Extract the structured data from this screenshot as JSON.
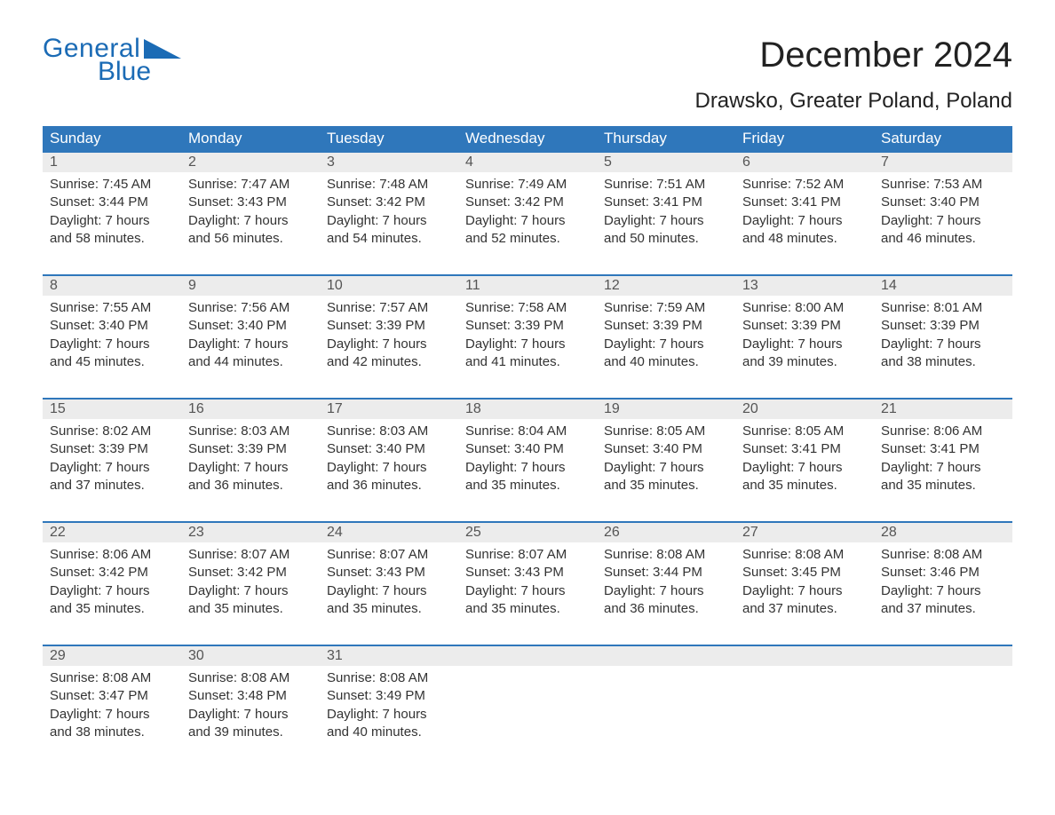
{
  "brand": {
    "word1": "General",
    "word2": "Blue",
    "brand_color": "#1b6bb5"
  },
  "title": "December 2024",
  "location": "Drawsko, Greater Poland, Poland",
  "colors": {
    "header_bg": "#2f77bb",
    "header_text": "#ffffff",
    "daynum_bg": "#ececec",
    "daynum_border_top": "#2f77bb",
    "body_text": "#333333",
    "page_bg": "#ffffff"
  },
  "typography": {
    "title_fontsize": 40,
    "subtitle_fontsize": 24,
    "header_fontsize": 17,
    "daynum_fontsize": 16,
    "body_fontsize": 15
  },
  "calendar": {
    "type": "table",
    "columns": [
      "Sunday",
      "Monday",
      "Tuesday",
      "Wednesday",
      "Thursday",
      "Friday",
      "Saturday"
    ],
    "weeks": [
      [
        {
          "n": "1",
          "sr": "Sunrise: 7:45 AM",
          "ss": "Sunset: 3:44 PM",
          "d1": "Daylight: 7 hours",
          "d2": "and 58 minutes."
        },
        {
          "n": "2",
          "sr": "Sunrise: 7:47 AM",
          "ss": "Sunset: 3:43 PM",
          "d1": "Daylight: 7 hours",
          "d2": "and 56 minutes."
        },
        {
          "n": "3",
          "sr": "Sunrise: 7:48 AM",
          "ss": "Sunset: 3:42 PM",
          "d1": "Daylight: 7 hours",
          "d2": "and 54 minutes."
        },
        {
          "n": "4",
          "sr": "Sunrise: 7:49 AM",
          "ss": "Sunset: 3:42 PM",
          "d1": "Daylight: 7 hours",
          "d2": "and 52 minutes."
        },
        {
          "n": "5",
          "sr": "Sunrise: 7:51 AM",
          "ss": "Sunset: 3:41 PM",
          "d1": "Daylight: 7 hours",
          "d2": "and 50 minutes."
        },
        {
          "n": "6",
          "sr": "Sunrise: 7:52 AM",
          "ss": "Sunset: 3:41 PM",
          "d1": "Daylight: 7 hours",
          "d2": "and 48 minutes."
        },
        {
          "n": "7",
          "sr": "Sunrise: 7:53 AM",
          "ss": "Sunset: 3:40 PM",
          "d1": "Daylight: 7 hours",
          "d2": "and 46 minutes."
        }
      ],
      [
        {
          "n": "8",
          "sr": "Sunrise: 7:55 AM",
          "ss": "Sunset: 3:40 PM",
          "d1": "Daylight: 7 hours",
          "d2": "and 45 minutes."
        },
        {
          "n": "9",
          "sr": "Sunrise: 7:56 AM",
          "ss": "Sunset: 3:40 PM",
          "d1": "Daylight: 7 hours",
          "d2": "and 44 minutes."
        },
        {
          "n": "10",
          "sr": "Sunrise: 7:57 AM",
          "ss": "Sunset: 3:39 PM",
          "d1": "Daylight: 7 hours",
          "d2": "and 42 minutes."
        },
        {
          "n": "11",
          "sr": "Sunrise: 7:58 AM",
          "ss": "Sunset: 3:39 PM",
          "d1": "Daylight: 7 hours",
          "d2": "and 41 minutes."
        },
        {
          "n": "12",
          "sr": "Sunrise: 7:59 AM",
          "ss": "Sunset: 3:39 PM",
          "d1": "Daylight: 7 hours",
          "d2": "and 40 minutes."
        },
        {
          "n": "13",
          "sr": "Sunrise: 8:00 AM",
          "ss": "Sunset: 3:39 PM",
          "d1": "Daylight: 7 hours",
          "d2": "and 39 minutes."
        },
        {
          "n": "14",
          "sr": "Sunrise: 8:01 AM",
          "ss": "Sunset: 3:39 PM",
          "d1": "Daylight: 7 hours",
          "d2": "and 38 minutes."
        }
      ],
      [
        {
          "n": "15",
          "sr": "Sunrise: 8:02 AM",
          "ss": "Sunset: 3:39 PM",
          "d1": "Daylight: 7 hours",
          "d2": "and 37 minutes."
        },
        {
          "n": "16",
          "sr": "Sunrise: 8:03 AM",
          "ss": "Sunset: 3:39 PM",
          "d1": "Daylight: 7 hours",
          "d2": "and 36 minutes."
        },
        {
          "n": "17",
          "sr": "Sunrise: 8:03 AM",
          "ss": "Sunset: 3:40 PM",
          "d1": "Daylight: 7 hours",
          "d2": "and 36 minutes."
        },
        {
          "n": "18",
          "sr": "Sunrise: 8:04 AM",
          "ss": "Sunset: 3:40 PM",
          "d1": "Daylight: 7 hours",
          "d2": "and 35 minutes."
        },
        {
          "n": "19",
          "sr": "Sunrise: 8:05 AM",
          "ss": "Sunset: 3:40 PM",
          "d1": "Daylight: 7 hours",
          "d2": "and 35 minutes."
        },
        {
          "n": "20",
          "sr": "Sunrise: 8:05 AM",
          "ss": "Sunset: 3:41 PM",
          "d1": "Daylight: 7 hours",
          "d2": "and 35 minutes."
        },
        {
          "n": "21",
          "sr": "Sunrise: 8:06 AM",
          "ss": "Sunset: 3:41 PM",
          "d1": "Daylight: 7 hours",
          "d2": "and 35 minutes."
        }
      ],
      [
        {
          "n": "22",
          "sr": "Sunrise: 8:06 AM",
          "ss": "Sunset: 3:42 PM",
          "d1": "Daylight: 7 hours",
          "d2": "and 35 minutes."
        },
        {
          "n": "23",
          "sr": "Sunrise: 8:07 AM",
          "ss": "Sunset: 3:42 PM",
          "d1": "Daylight: 7 hours",
          "d2": "and 35 minutes."
        },
        {
          "n": "24",
          "sr": "Sunrise: 8:07 AM",
          "ss": "Sunset: 3:43 PM",
          "d1": "Daylight: 7 hours",
          "d2": "and 35 minutes."
        },
        {
          "n": "25",
          "sr": "Sunrise: 8:07 AM",
          "ss": "Sunset: 3:43 PM",
          "d1": "Daylight: 7 hours",
          "d2": "and 35 minutes."
        },
        {
          "n": "26",
          "sr": "Sunrise: 8:08 AM",
          "ss": "Sunset: 3:44 PM",
          "d1": "Daylight: 7 hours",
          "d2": "and 36 minutes."
        },
        {
          "n": "27",
          "sr": "Sunrise: 8:08 AM",
          "ss": "Sunset: 3:45 PM",
          "d1": "Daylight: 7 hours",
          "d2": "and 37 minutes."
        },
        {
          "n": "28",
          "sr": "Sunrise: 8:08 AM",
          "ss": "Sunset: 3:46 PM",
          "d1": "Daylight: 7 hours",
          "d2": "and 37 minutes."
        }
      ],
      [
        {
          "n": "29",
          "sr": "Sunrise: 8:08 AM",
          "ss": "Sunset: 3:47 PM",
          "d1": "Daylight: 7 hours",
          "d2": "and 38 minutes."
        },
        {
          "n": "30",
          "sr": "Sunrise: 8:08 AM",
          "ss": "Sunset: 3:48 PM",
          "d1": "Daylight: 7 hours",
          "d2": "and 39 minutes."
        },
        {
          "n": "31",
          "sr": "Sunrise: 8:08 AM",
          "ss": "Sunset: 3:49 PM",
          "d1": "Daylight: 7 hours",
          "d2": "and 40 minutes."
        },
        null,
        null,
        null,
        null
      ]
    ]
  }
}
